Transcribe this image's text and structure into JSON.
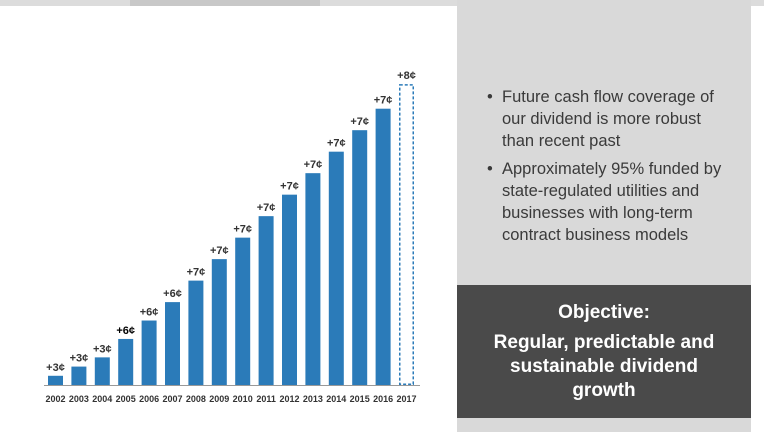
{
  "chart_data": {
    "type": "bar",
    "categories": [
      "2002",
      "2003",
      "2004",
      "2005",
      "2006",
      "2007",
      "2008",
      "2009",
      "2010",
      "2011",
      "2012",
      "2013",
      "2014",
      "2015",
      "2016",
      "2017"
    ],
    "values": [
      3,
      6,
      9,
      15,
      21,
      27,
      34,
      41,
      48,
      55,
      62,
      69,
      76,
      83,
      90,
      98
    ],
    "data_labels": [
      "+3¢",
      "+3¢",
      "+3¢",
      "+6¢",
      "+6¢",
      "+6¢",
      "+7¢",
      "+7¢",
      "+7¢",
      "+7¢",
      "+7¢",
      "+7¢",
      "+7¢",
      "+7¢",
      "+7¢",
      "+8¢"
    ],
    "projected_index": 15,
    "highlight_label_index": 3,
    "ylim": [
      0,
      100
    ],
    "grid": false,
    "title": "",
    "xlabel": "",
    "ylabel": "",
    "colors": {
      "bar": "#2b7bb9",
      "projected_border": "#2b7bb9",
      "label": "#333333"
    }
  },
  "panel": {
    "bullets": [
      "Future cash flow coverage of our dividend is more robust than recent past",
      "Approximately 95% funded by state-regulated utilities and businesses with long-term contract business models"
    ],
    "bullet_glyph": "•"
  },
  "objective": {
    "title": "Objective:",
    "text": "Regular, predictable and sustainable dividend growth"
  }
}
